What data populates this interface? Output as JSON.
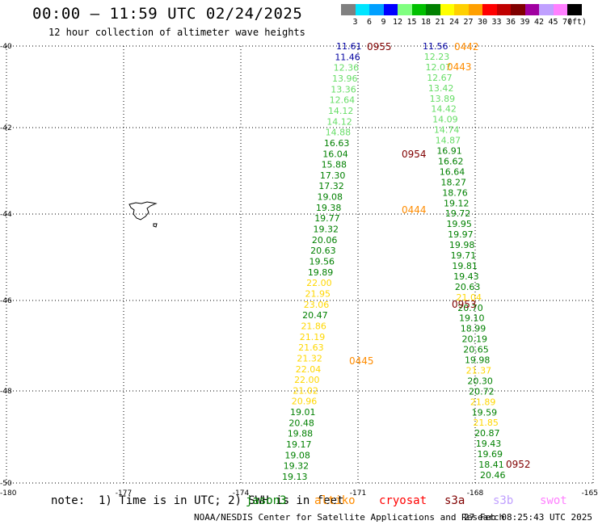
{
  "title": "00:00 – 11:59 UTC 02/24/2025",
  "subtitle": "12 hour collection of altimeter wave heights",
  "scale": {
    "unit": "(ft)",
    "labels": [
      "3",
      "6",
      "9",
      "12",
      "15",
      "18",
      "21",
      "24",
      "27",
      "30",
      "33",
      "36",
      "39",
      "42",
      "45",
      "70"
    ],
    "colors": [
      "#808080",
      "#00e5ff",
      "#00a0ff",
      "#0000ff",
      "#80ff80",
      "#00c000",
      "#008000",
      "#ffff00",
      "#ffd000",
      "#ffa000",
      "#ff0000",
      "#c00000",
      "#800000",
      "#a000a0",
      "#c0a0ff",
      "#ff80ff",
      "#000000"
    ]
  },
  "axes": {
    "lat_labels": [
      "-40",
      "-42",
      "-44",
      "-46",
      "-48",
      "-50"
    ],
    "lon_labels": [
      "-180",
      "-177",
      "-174",
      "-171",
      "-168",
      "-165"
    ]
  },
  "tracks": {
    "left": {
      "readings": [
        {
          "v": "11.61",
          "c": "#0000a0"
        },
        {
          "v": "11.46",
          "c": "#0000a0"
        },
        {
          "v": "12.36",
          "c": "#66dd66"
        },
        {
          "v": "13.96",
          "c": "#66dd66"
        },
        {
          "v": "13.36",
          "c": "#66dd66"
        },
        {
          "v": "12.64",
          "c": "#66dd66"
        },
        {
          "v": "14.12",
          "c": "#66dd66"
        },
        {
          "v": "14.12",
          "c": "#66dd66"
        },
        {
          "v": "14.88",
          "c": "#66dd66"
        },
        {
          "v": "16.63",
          "c": "#008000"
        },
        {
          "v": "16.04",
          "c": "#008000"
        },
        {
          "v": "15.88",
          "c": "#008000"
        },
        {
          "v": "17.30",
          "c": "#008000"
        },
        {
          "v": "17.32",
          "c": "#008000"
        },
        {
          "v": "19.08",
          "c": "#008000"
        },
        {
          "v": "19.38",
          "c": "#008000"
        },
        {
          "v": "19.77",
          "c": "#008000"
        },
        {
          "v": "19.32",
          "c": "#008000"
        },
        {
          "v": "20.06",
          "c": "#008000"
        },
        {
          "v": "20.63",
          "c": "#008000"
        },
        {
          "v": "19.56",
          "c": "#008000"
        },
        {
          "v": "19.89",
          "c": "#008000"
        },
        {
          "v": "22.00",
          "c": "#ffd700"
        },
        {
          "v": "21.95",
          "c": "#ffd700"
        },
        {
          "v": "23.06",
          "c": "#ffd700"
        },
        {
          "v": "20.47",
          "c": "#008000"
        },
        {
          "v": "21.86",
          "c": "#ffd700"
        },
        {
          "v": "21.19",
          "c": "#ffd700"
        },
        {
          "v": "21.63",
          "c": "#ffd700"
        },
        {
          "v": "21.32",
          "c": "#ffd700"
        },
        {
          "v": "22.04",
          "c": "#ffd700"
        },
        {
          "v": "22.00",
          "c": "#ffd700"
        },
        {
          "v": "21.02",
          "c": "#ffd700"
        },
        {
          "v": "20.96",
          "c": "#ffd700"
        },
        {
          "v": "19.01",
          "c": "#008000"
        },
        {
          "v": "20.48",
          "c": "#008000"
        },
        {
          "v": "19.88",
          "c": "#008000"
        },
        {
          "v": "19.17",
          "c": "#008000"
        },
        {
          "v": "19.08",
          "c": "#008000"
        },
        {
          "v": "19.32",
          "c": "#008000"
        },
        {
          "v": "19.13",
          "c": "#008000"
        }
      ],
      "times": [
        {
          "t": "0955",
          "c": "#800000"
        },
        {
          "t": "0954",
          "c": "#800000"
        },
        {
          "t": "0445",
          "c": "#ff8c00"
        }
      ]
    },
    "right": {
      "readings": [
        {
          "v": "11.56",
          "c": "#0000a0"
        },
        {
          "v": "12.23",
          "c": "#66dd66"
        },
        {
          "v": "12.07",
          "c": "#66dd66"
        },
        {
          "v": "12.67",
          "c": "#66dd66"
        },
        {
          "v": "13.42",
          "c": "#66dd66"
        },
        {
          "v": "13.89",
          "c": "#66dd66"
        },
        {
          "v": "14.42",
          "c": "#66dd66"
        },
        {
          "v": "14.09",
          "c": "#66dd66"
        },
        {
          "v": "14.74",
          "c": "#66dd66"
        },
        {
          "v": "14.87",
          "c": "#66dd66"
        },
        {
          "v": "16.91",
          "c": "#008000"
        },
        {
          "v": "16.62",
          "c": "#008000"
        },
        {
          "v": "16.64",
          "c": "#008000"
        },
        {
          "v": "18.27",
          "c": "#008000"
        },
        {
          "v": "18.76",
          "c": "#008000"
        },
        {
          "v": "19.12",
          "c": "#008000"
        },
        {
          "v": "19.72",
          "c": "#008000"
        },
        {
          "v": "19.95",
          "c": "#008000"
        },
        {
          "v": "19.97",
          "c": "#008000"
        },
        {
          "v": "19.98",
          "c": "#008000"
        },
        {
          "v": "19.71",
          "c": "#008000"
        },
        {
          "v": "19.81",
          "c": "#008000"
        },
        {
          "v": "19.43",
          "c": "#008000"
        },
        {
          "v": "20.63",
          "c": "#008000"
        },
        {
          "v": "21.04",
          "c": "#ffd700"
        },
        {
          "v": "20.70",
          "c": "#008000"
        },
        {
          "v": "19.10",
          "c": "#008000"
        },
        {
          "v": "18.99",
          "c": "#008000"
        },
        {
          "v": "20.19",
          "c": "#008000"
        },
        {
          "v": "20.65",
          "c": "#008000"
        },
        {
          "v": "19.98",
          "c": "#008000"
        },
        {
          "v": "21.37",
          "c": "#ffd700"
        },
        {
          "v": "20.30",
          "c": "#008000"
        },
        {
          "v": "20.72",
          "c": "#008000"
        },
        {
          "v": "21.89",
          "c": "#ffd700"
        },
        {
          "v": "19.59",
          "c": "#008000"
        },
        {
          "v": "21.85",
          "c": "#ffd700"
        },
        {
          "v": "20.87",
          "c": "#008000"
        },
        {
          "v": "19.43",
          "c": "#008000"
        },
        {
          "v": "19.69",
          "c": "#008000"
        },
        {
          "v": "18.41",
          "c": "#008000"
        },
        {
          "v": "20.46",
          "c": "#008000"
        }
      ],
      "times": [
        {
          "t": "0442",
          "c": "#ff8c00"
        },
        {
          "t": "0443",
          "c": "#ff8c00"
        },
        {
          "t": "0444",
          "c": "#ff8c00"
        },
        {
          "t": "0953",
          "c": "#800000"
        },
        {
          "t": "0952",
          "c": "#800000"
        }
      ]
    }
  },
  "footer": {
    "note": "note:  1) Time is in UTC; 2) SWH is in feet",
    "legend": [
      {
        "label": "jason3",
        "color": "#008000"
      },
      {
        "label": "altiko",
        "color": "#ff8c00"
      },
      {
        "label": "cryosat",
        "color": "#ff0000"
      },
      {
        "label": "s3a",
        "color": "#800000"
      },
      {
        "label": "s3b",
        "color": "#c0a0ff"
      },
      {
        "label": "swot",
        "color": "#ff80ff"
      }
    ],
    "credit": "NOAA/NESDIS Center for Satellite Applications and Research",
    "timestamp": "27 Feb 08:25:43 UTC 2025"
  }
}
